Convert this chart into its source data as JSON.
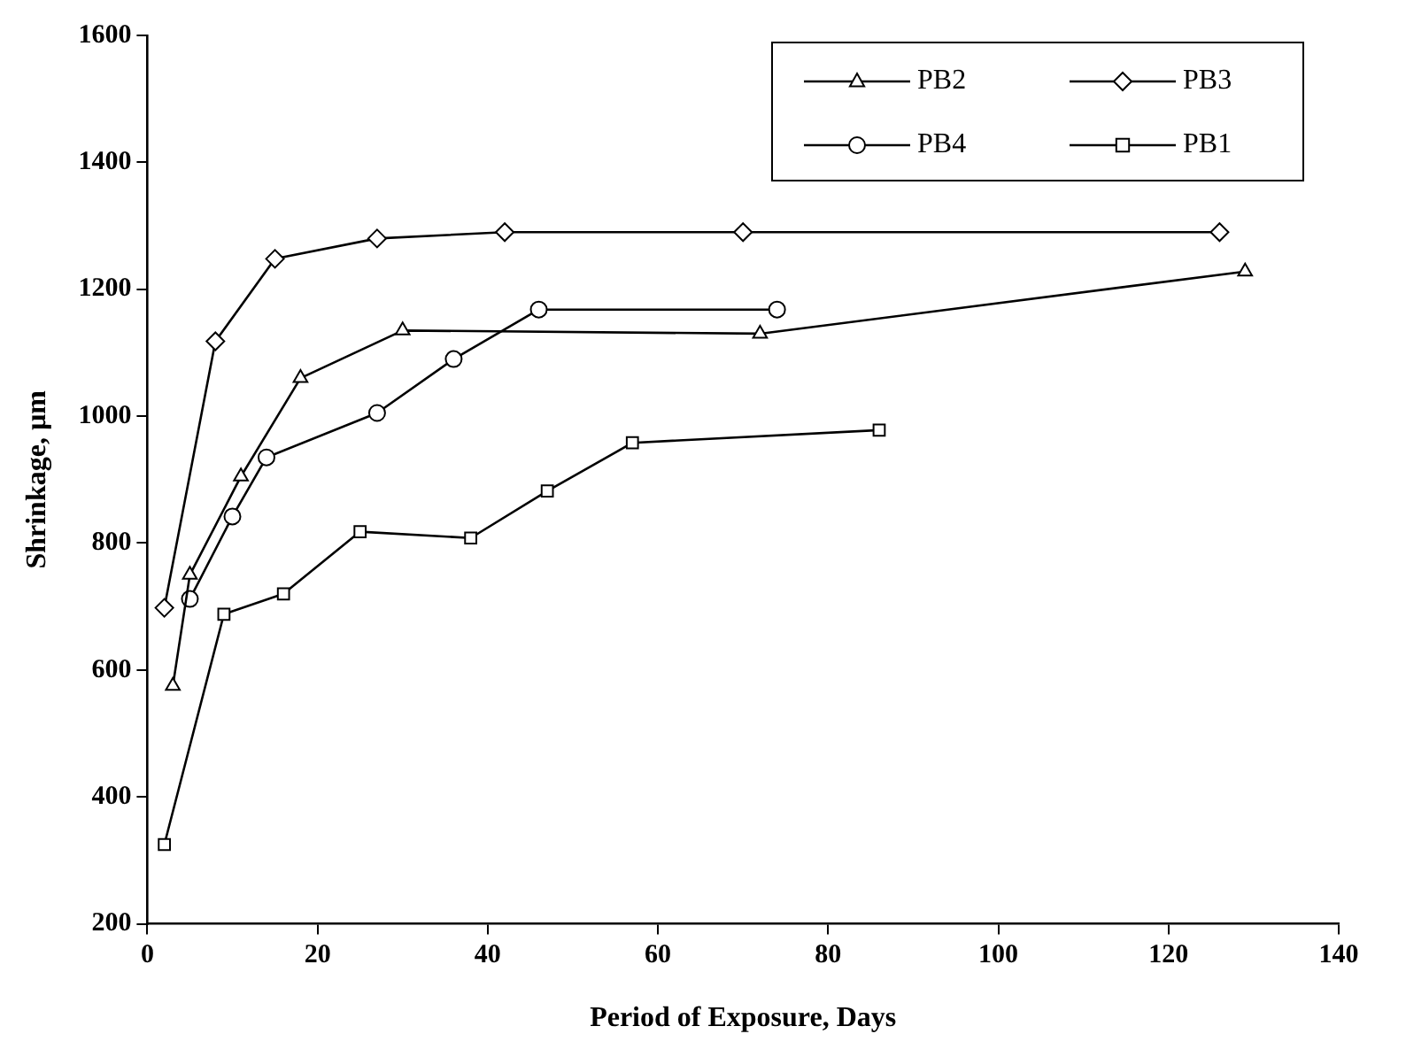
{
  "chart_data": {
    "type": "line",
    "xlabel": "Period of Exposure, Days",
    "ylabel": "Shrinkage, µm",
    "xlim": [
      0,
      140
    ],
    "xticks": [
      0,
      20,
      40,
      60,
      80,
      100,
      120,
      140
    ],
    "ylim": [
      200,
      1600
    ],
    "yticks": [
      200,
      400,
      600,
      800,
      1000,
      1200,
      1400,
      1600
    ],
    "grid": false,
    "legend": "top right",
    "line_style": "solid",
    "series": [
      {
        "name": "PB2",
        "color": "#000000",
        "marker": "triangle",
        "x": [
          3,
          5,
          11,
          18,
          30,
          72,
          129
        ],
        "values": [
          575,
          750,
          905,
          1060,
          1135,
          1130,
          1228
        ]
      },
      {
        "name": "PB3",
        "color": "#000000",
        "marker": "diamond",
        "x": [
          2,
          8,
          15,
          27,
          42,
          70,
          126
        ],
        "values": [
          698,
          1118,
          1248,
          1280,
          1290,
          1290,
          1290
        ]
      },
      {
        "name": "PB4",
        "color": "#000000",
        "marker": "circle",
        "x": [
          5,
          10,
          14,
          27,
          36,
          46,
          74
        ],
        "values": [
          712,
          842,
          935,
          1005,
          1090,
          1168,
          1168
        ]
      },
      {
        "name": "PB1",
        "color": "#000000",
        "marker": "square",
        "x": [
          2,
          9,
          16,
          25,
          38,
          47,
          57,
          86
        ],
        "values": [
          325,
          688,
          720,
          818,
          808,
          882,
          958,
          978
        ]
      }
    ]
  }
}
